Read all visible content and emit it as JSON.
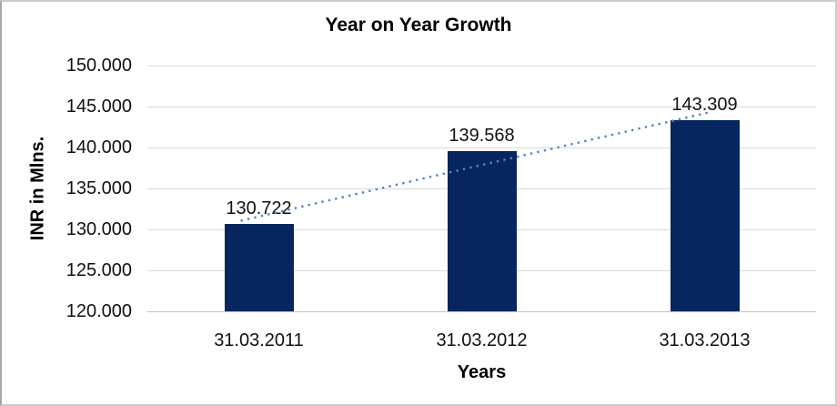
{
  "window": {
    "background": "#ffffff",
    "frame_border_color": "#cbcbcb"
  },
  "chart_data": {
    "type": "bar",
    "title": "Year on Year Growth",
    "categories": [
      "31.03.2011",
      "31.03.2012",
      "31.03.2013"
    ],
    "values": [
      130.722,
      139.568,
      143.309
    ],
    "data_labels": [
      "130.722",
      "139.568",
      "143.309"
    ],
    "xlabel": "Years",
    "ylabel": "INR in Mlns.",
    "ylim": [
      120,
      150
    ],
    "ytick_step": 5,
    "yticks": [
      "150.000",
      "145.000",
      "140.000",
      "135.000",
      "130.000",
      "125.000",
      "120.000"
    ],
    "grid": true,
    "legend": "none",
    "bar_color": "#07255E",
    "gridline_color": "#D9D9D9",
    "axis_line_color": "#C3C3C3",
    "label_color": "#111111",
    "trendline": {
      "type": "linear",
      "style": "dotted",
      "color": "#4E86C8"
    }
  }
}
